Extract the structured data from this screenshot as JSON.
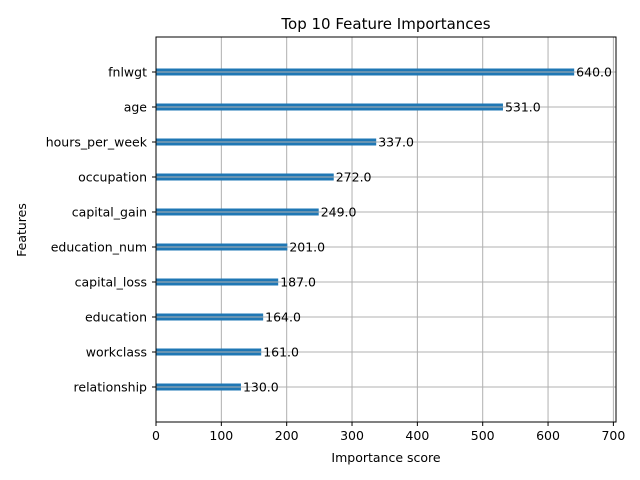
{
  "chart_data": {
    "type": "bar",
    "orientation": "horizontal",
    "title": "Top 10 Feature Importances",
    "xlabel": "Importance score",
    "ylabel": "Features",
    "categories": [
      "fnlwgt",
      "age",
      "hours_per_week",
      "occupation",
      "capital_gain",
      "education_num",
      "capital_loss",
      "education",
      "workclass",
      "relationship"
    ],
    "values": [
      640.0,
      531.0,
      337.0,
      272.0,
      249.0,
      201.0,
      187.0,
      164.0,
      161.0,
      130.0
    ],
    "value_labels": [
      "640.0",
      "531.0",
      "337.0",
      "272.0",
      "249.0",
      "201.0",
      "187.0",
      "164.0",
      "161.0",
      "130.0"
    ],
    "xlim": [
      0,
      704
    ],
    "xticks": [
      0,
      100,
      200,
      300,
      400,
      500,
      600,
      700
    ],
    "xtick_labels": [
      "0",
      "100",
      "200",
      "300",
      "400",
      "500",
      "600",
      "700"
    ],
    "grid": true,
    "bar_color": "#1f77b4",
    "grid_color": "#b0b0b0"
  }
}
